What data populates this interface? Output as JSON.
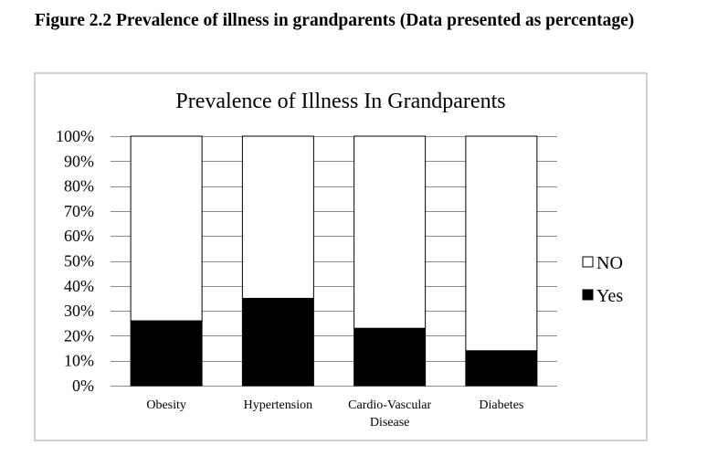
{
  "figure": {
    "caption": "Figure 2.2 Prevalence of illness in grandparents  (Data presented  as percentage)"
  },
  "colors": {
    "yes": "#000000",
    "no": "#ffffff",
    "grid": "#8c8c8c",
    "border": "#a6a6a6"
  },
  "chart_data": {
    "type": "bar",
    "stacked": "percent",
    "title": "Prevalence of Illness In Grandparents",
    "xlabel": "",
    "ylabel": "",
    "categories": [
      [
        "Obesity"
      ],
      [
        "Hypertension"
      ],
      [
        "Cardio-Vascular",
        "Disease"
      ],
      [
        "Diabetes"
      ]
    ],
    "series": [
      {
        "name": "Yes",
        "values": [
          26,
          35,
          23,
          14
        ]
      },
      {
        "name": "NO",
        "values": [
          74,
          65,
          77,
          86
        ]
      }
    ],
    "ylim": [
      0,
      100
    ],
    "yticks": [
      "0%",
      "10%",
      "20%",
      "30%",
      "40%",
      "50%",
      "60%",
      "70%",
      "80%",
      "90%",
      "100%"
    ],
    "grid": true,
    "legend": {
      "position": "right",
      "entries": [
        "NO",
        "Yes"
      ]
    }
  }
}
